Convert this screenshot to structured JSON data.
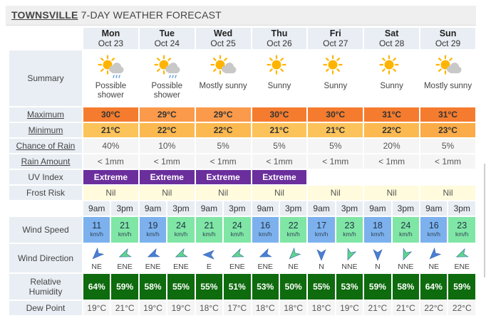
{
  "header": {
    "place": "TOWNSVILLE",
    "title_rest": "7-DAY WEATHER FORECAST"
  },
  "labels": {
    "summary": "Summary",
    "maximum": "Maximum",
    "minimum": "Minimum",
    "chance_of_rain": "Chance of Rain",
    "rain_amount": "Rain Amount",
    "uv_index": "UV Index",
    "frost_risk": "Frost Risk",
    "wind_speed": "Wind Speed",
    "wind_direction": "Wind Direction",
    "relative_humidity": "Relative\nHumidity",
    "dew_point": "Dew Point"
  },
  "wind_unit": "km/h",
  "days": [
    {
      "name": "Mon",
      "date": "Oct 23",
      "icon": "sun-cloud-rain-icon",
      "summary": "Possible shower",
      "max": "30°C",
      "min": "21°C",
      "rain_chance": "40%",
      "rain_amount": "< 1mm",
      "uv": "Extreme",
      "frost": "Nil",
      "times": [
        "9am",
        "3pm"
      ],
      "wind_speed": [
        "11",
        "21"
      ],
      "wind_dir": [
        "NE",
        "ENE"
      ],
      "humidity": [
        "64%",
        "59%"
      ],
      "dew": [
        "19°C",
        "21°C"
      ]
    },
    {
      "name": "Tue",
      "date": "Oct 24",
      "icon": "sun-cloud-rain-icon",
      "summary": "Possible shower",
      "max": "29°C",
      "min": "22°C",
      "rain_chance": "10%",
      "rain_amount": "< 1mm",
      "uv": "Extreme",
      "frost": "Nil",
      "times": [
        "9am",
        "3pm"
      ],
      "wind_speed": [
        "19",
        "24"
      ],
      "wind_dir": [
        "ENE",
        "ENE"
      ],
      "humidity": [
        "58%",
        "55%"
      ],
      "dew": [
        "19°C",
        "19°C"
      ]
    },
    {
      "name": "Wed",
      "date": "Oct 25",
      "icon": "sun-cloud-icon",
      "summary": "Mostly sunny",
      "max": "29°C",
      "min": "22°C",
      "rain_chance": "5%",
      "rain_amount": "< 1mm",
      "uv": "Extreme",
      "frost": "Nil",
      "times": [
        "9am",
        "3pm"
      ],
      "wind_speed": [
        "21",
        "24"
      ],
      "wind_dir": [
        "E",
        "ENE"
      ],
      "humidity": [
        "55%",
        "51%"
      ],
      "dew": [
        "18°C",
        "17°C"
      ]
    },
    {
      "name": "Thu",
      "date": "Oct 26",
      "icon": "sun-icon",
      "summary": "Sunny",
      "max": "30°C",
      "min": "21°C",
      "rain_chance": "5%",
      "rain_amount": "< 1mm",
      "uv": "Extreme",
      "frost": "Nil",
      "times": [
        "9am",
        "3pm"
      ],
      "wind_speed": [
        "16",
        "22"
      ],
      "wind_dir": [
        "ENE",
        "NE"
      ],
      "humidity": [
        "53%",
        "50%"
      ],
      "dew": [
        "18°C",
        "18°C"
      ]
    },
    {
      "name": "Fri",
      "date": "Oct 27",
      "icon": "sun-icon",
      "summary": "Sunny",
      "max": "30°C",
      "min": "21°C",
      "rain_chance": "5%",
      "rain_amount": "< 1mm",
      "uv": "",
      "frost": "Nil",
      "times": [
        "9am",
        "3pm"
      ],
      "wind_speed": [
        "17",
        "23"
      ],
      "wind_dir": [
        "N",
        "NNE"
      ],
      "humidity": [
        "55%",
        "53%"
      ],
      "dew": [
        "18°C",
        "19°C"
      ]
    },
    {
      "name": "Sat",
      "date": "Oct 28",
      "icon": "sun-icon",
      "summary": "Sunny",
      "max": "31°C",
      "min": "22°C",
      "rain_chance": "20%",
      "rain_amount": "< 1mm",
      "uv": "",
      "frost": "Nil",
      "times": [
        "9am",
        "3pm"
      ],
      "wind_speed": [
        "18",
        "24"
      ],
      "wind_dir": [
        "N",
        "NNE"
      ],
      "humidity": [
        "59%",
        "58%"
      ],
      "dew": [
        "21°C",
        "21°C"
      ]
    },
    {
      "name": "Sun",
      "date": "Oct 29",
      "icon": "sun-cloud-icon",
      "summary": "Mostly sunny",
      "max": "31°C",
      "min": "23°C",
      "rain_chance": "5%",
      "rain_amount": "< 1mm",
      "uv": "",
      "frost": "Nil",
      "times": [
        "9am",
        "3pm"
      ],
      "wind_speed": [
        "16",
        "23"
      ],
      "wind_dir": [
        "NE",
        "ENE"
      ],
      "humidity": [
        "64%",
        "59%"
      ],
      "dew": [
        "22°C",
        "22°C"
      ]
    }
  ]
}
